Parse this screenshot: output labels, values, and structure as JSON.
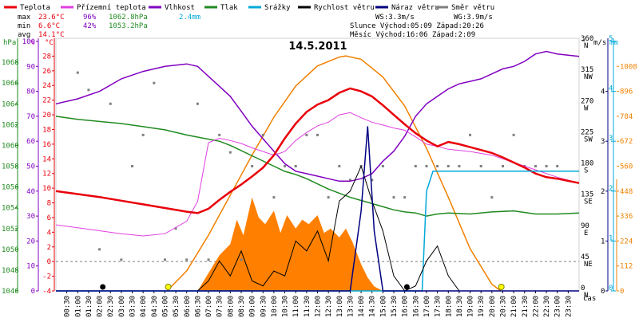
{
  "chart_data": {
    "type": "line",
    "title": "14.5.2011",
    "legend": {
      "placement": "top",
      "items": [
        {
          "label": "Teplota",
          "color": "#e8000b"
        },
        {
          "label": "Přízemní teplota",
          "color": "#e040e0"
        },
        {
          "label": "Vlhkost",
          "color": "#8000c0"
        },
        {
          "label": "Tlak",
          "color": "#208a20"
        },
        {
          "label": "Srážky",
          "color": "#00a8d8"
        },
        {
          "label": "Rychlost větru",
          "color": "#000000"
        },
        {
          "label": "Náraz větru",
          "color": "#000080"
        },
        {
          "label": "Směr větru",
          "color": "#808080"
        }
      ]
    },
    "stats": {
      "max_label": "max",
      "max_temp": "23.6°C",
      "max_hum": "96%",
      "max_press": "1062.8hPa",
      "max_rain": "2.4mm",
      "min_label": "min",
      "min_temp": "6.6°C",
      "min_hum": "42%",
      "min_press": "1053.2hPa",
      "avg_label": "avg",
      "avg_temp": "14.1°C",
      "ws": "WS:3.3m/s",
      "wg": "WG:3.9m/s",
      "sun": "Slunce Východ:05:09   Západ:20:26",
      "moon": "Měsíc  Východ:16:06   Západ:2:09"
    },
    "axes": {
      "hpa": {
        "label": "hPa",
        "ticks": [
          "1046",
          "1048",
          "1050",
          "1052",
          "1054",
          "1056",
          "1058",
          "1060",
          "1062",
          "1064",
          "1066",
          "1068"
        ],
        "range": [
          1046,
          1070
        ]
      },
      "pct": {
        "label": "%",
        "ticks": [
          "0",
          "10",
          "20",
          "30",
          "40",
          "50",
          "60",
          "70",
          "80",
          "90",
          "100"
        ],
        "range": [
          0,
          100
        ]
      },
      "degc": {
        "label": "°C",
        "ticks": [
          "-4",
          "-2",
          "0",
          "2",
          "4",
          "6",
          "8",
          "10",
          "12",
          "14",
          "16",
          "18",
          "20",
          "22",
          "24",
          "26",
          "28"
        ],
        "range": [
          -4,
          30
        ]
      },
      "dir": {
        "label": "°",
        "ticks": [
          "0",
          "45",
          "90",
          "135",
          "180",
          "225",
          "270",
          "315",
          "360"
        ],
        "sub": [
          "N",
          "NE",
          "E",
          "SE",
          "S",
          "SW",
          "W",
          "NW",
          "N"
        ],
        "range": [
          0,
          360
        ]
      },
      "ms": {
        "label": "m/s",
        "ticks": [
          "0",
          "1",
          "2",
          "3",
          "4"
        ],
        "range": [
          0,
          5
        ]
      },
      "mm": {
        "label": "mm",
        "ticks": [
          "0",
          "1",
          "2",
          "3",
          "4",
          "5"
        ],
        "range": [
          0,
          5
        ]
      },
      "wm2": {
        "ticks": [
          "0",
          "112",
          "224",
          "336",
          "448",
          "560",
          "672",
          "784",
          "896",
          "1008"
        ],
        "range": [
          0,
          1120
        ]
      },
      "time": {
        "label": "čas",
        "ticks": [
          "00:30",
          "01:00",
          "01:30",
          "02:00",
          "02:30",
          "03:00",
          "03:30",
          "04:00",
          "04:30",
          "05:00",
          "05:30",
          "06:00",
          "06:30",
          "07:00",
          "07:30",
          "08:00",
          "08:30",
          "09:00",
          "09:30",
          "10:00",
          "10:30",
          "11:00",
          "11:30",
          "12:00",
          "12:30",
          "13:00",
          "13:30",
          "14:00",
          "14:30",
          "15:00",
          "15:30",
          "16:00",
          "16:30",
          "17:00",
          "17:30",
          "18:00",
          "18:30",
          "19:00",
          "19:30",
          "20:00",
          "20:30",
          "21:00",
          "21:30",
          "22:00",
          "22:30",
          "23:00",
          "23:30"
        ]
      }
    },
    "series": [
      {
        "name": "Teplota",
        "unit": "°C",
        "x": [
          0,
          1,
          2,
          3,
          4,
          5,
          6,
          6.5,
          7,
          7.5,
          8,
          8.5,
          9,
          9.5,
          10,
          10.5,
          11,
          11.5,
          12,
          12.5,
          13,
          13.5,
          14,
          14.5,
          15,
          15.5,
          16,
          16.5,
          17,
          17.5,
          18,
          18.5,
          19,
          19.5,
          20,
          20.5,
          21,
          21.5,
          22,
          22.5,
          23,
          24
        ],
        "values": [
          9.6,
          9.2,
          8.8,
          8.3,
          7.8,
          7.3,
          6.8,
          6.6,
          7.2,
          8.4,
          9.5,
          10.5,
          11.6,
          12.8,
          14.5,
          16.8,
          18.8,
          20.4,
          21.4,
          22.0,
          23.0,
          23.6,
          23.2,
          22.5,
          21.3,
          20.0,
          18.7,
          17.5,
          16.5,
          15.7,
          16.3,
          16.0,
          15.6,
          15.2,
          14.8,
          14.2,
          13.5,
          12.8,
          12.0,
          11.5,
          11.3,
          10.7
        ]
      },
      {
        "name": "Přízemní teplota",
        "unit": "°C",
        "x": [
          0,
          1,
          2,
          3,
          4,
          5,
          6,
          6.5,
          7,
          7.5,
          8,
          8.5,
          9,
          9.5,
          10,
          10.5,
          11,
          11.5,
          12,
          12.5,
          13,
          13.5,
          14,
          14.5,
          15,
          15.5,
          16,
          16.5,
          17,
          17.5,
          18,
          19,
          20,
          21,
          22,
          23,
          24
        ],
        "values": [
          5.0,
          4.6,
          4.2,
          3.8,
          3.5,
          3.8,
          5.5,
          8.2,
          16.2,
          16.8,
          16.5,
          16.1,
          15.5,
          15.0,
          14.5,
          15.0,
          16.5,
          17.6,
          18.5,
          19.0,
          20.0,
          20.3,
          19.6,
          19.0,
          18.6,
          18.2,
          17.9,
          17.0,
          16.0,
          15.7,
          15.3,
          15.0,
          14.5,
          13.5,
          12.5,
          11.5,
          10.7
        ]
      },
      {
        "name": "Vlhkost",
        "unit": "%",
        "x": [
          0,
          1,
          2,
          3,
          4,
          5,
          6,
          6.5,
          7,
          7.5,
          8,
          8.5,
          9,
          9.5,
          10,
          10.5,
          11,
          11.5,
          12,
          12.5,
          13,
          13.5,
          14,
          14.5,
          15,
          15.5,
          16,
          16.5,
          17,
          17.5,
          18,
          18.5,
          19,
          19.5,
          20,
          20.5,
          21,
          21.5,
          22,
          22.5,
          23,
          24
        ],
        "values": [
          75,
          77,
          80,
          85,
          88,
          90,
          91,
          90,
          86,
          82,
          78,
          72,
          66,
          61,
          56,
          51,
          48,
          47,
          46,
          45,
          44,
          44,
          45,
          47,
          52,
          56,
          62,
          70,
          75,
          78,
          81,
          83,
          84,
          85,
          87,
          89,
          90,
          92,
          95,
          96,
          95,
          94
        ]
      },
      {
        "name": "Tlak",
        "unit": "hPa",
        "x": [
          0,
          1,
          2,
          3,
          4,
          5,
          6,
          6.5,
          7,
          7.5,
          8,
          8.5,
          9,
          9.5,
          10,
          10.5,
          11,
          11.5,
          12,
          12.5,
          13,
          13.5,
          14,
          14.5,
          15,
          15.5,
          16,
          16.5,
          17,
          17.5,
          18,
          19,
          20,
          21,
          22,
          23,
          24
        ],
        "values": [
          1062.8,
          1062.5,
          1062.3,
          1062.1,
          1061.8,
          1061.5,
          1061.0,
          1060.8,
          1060.6,
          1060.4,
          1060.0,
          1059.5,
          1059.0,
          1058.5,
          1058.0,
          1057.5,
          1057.2,
          1056.8,
          1056.3,
          1055.8,
          1055.4,
          1055.0,
          1054.7,
          1054.4,
          1054.1,
          1053.8,
          1053.6,
          1053.5,
          1053.2,
          1053.4,
          1053.5,
          1053.4,
          1053.6,
          1053.7,
          1053.4,
          1053.4,
          1053.5
        ]
      },
      {
        "name": "Srážky",
        "unit": "mm",
        "x": [
          0,
          16.8,
          17.0,
          17.3,
          24
        ],
        "values": [
          0,
          0,
          2.0,
          2.4,
          2.4
        ]
      },
      {
        "name": "Rychlost větru",
        "unit": "m/s",
        "x": [
          0,
          6.5,
          7,
          7.5,
          8,
          8.5,
          9,
          9.5,
          10,
          10.5,
          11,
          11.5,
          12,
          12.5,
          13,
          13.5,
          14,
          14.5,
          15,
          15.5,
          16,
          16.5,
          17,
          17.5,
          18,
          18.5,
          19,
          24
        ],
        "values": [
          0,
          0,
          0.2,
          0.6,
          0.3,
          0.8,
          0.2,
          0.1,
          0.4,
          0.3,
          1.0,
          0.8,
          1.2,
          0.6,
          1.8,
          2.0,
          2.5,
          1.8,
          1.2,
          0.3,
          0,
          0.1,
          0.6,
          0.9,
          0.3,
          0,
          0,
          0
        ]
      },
      {
        "name": "Náraz větru",
        "unit": "m/s",
        "x": [
          0,
          13.5,
          14,
          14.3,
          14.6,
          15,
          24
        ],
        "values": [
          0,
          0,
          1.6,
          3.3,
          1.2,
          0,
          0
        ]
      },
      {
        "name": "Směr větru",
        "unit": "°",
        "x": [
          1,
          1.5,
          2,
          2.5,
          3,
          3.5,
          4,
          4.5,
          5,
          5.5,
          6,
          6.5,
          7,
          7.5,
          8,
          8.5,
          9,
          9.5,
          10,
          10.5,
          11,
          11.5,
          12,
          12.5,
          13,
          13.5,
          14,
          14.5,
          15,
          15.5,
          16,
          16.5,
          17,
          17.5,
          18,
          18.5,
          19,
          19.5,
          20,
          20.5,
          21,
          21.5,
          22,
          22.5,
          23
        ],
        "values": [
          315,
          290,
          60,
          270,
          45,
          180,
          225,
          300,
          45,
          90,
          45,
          270,
          45,
          225,
          200,
          45,
          180,
          225,
          135,
          180,
          180,
          225,
          225,
          135,
          180,
          160,
          180,
          160,
          180,
          135,
          135,
          180,
          180,
          180,
          180,
          180,
          225,
          180,
          135,
          180,
          225,
          180,
          180,
          180,
          180
        ]
      },
      {
        "name": "Solar radiation",
        "unit": "W/m²",
        "x": [
          5.1,
          6,
          7,
          8,
          9,
          10,
          11,
          12,
          13,
          13.3,
          14,
          15,
          16,
          17,
          18,
          19,
          20,
          20.4
        ],
        "values": [
          0,
          90,
          250,
          430,
          610,
          780,
          920,
          1010,
          1050,
          1055,
          1040,
          960,
          830,
          640,
          420,
          190,
          30,
          0
        ]
      },
      {
        "name": "Irradiance",
        "unit": "W/m²",
        "x": [
          6.5,
          7,
          7.5,
          8,
          8.3,
          8.6,
          9,
          9.3,
          9.6,
          10,
          10.3,
          10.6,
          11,
          11.3,
          11.6,
          12,
          12.3,
          12.6,
          13,
          13.3,
          13.6,
          14,
          14.3,
          14.6,
          15
        ],
        "values": [
          0,
          80,
          160,
          210,
          320,
          250,
          420,
          330,
          300,
          360,
          260,
          340,
          280,
          320,
          300,
          340,
          260,
          280,
          240,
          280,
          220,
          120,
          60,
          20,
          0
        ]
      }
    ]
  }
}
